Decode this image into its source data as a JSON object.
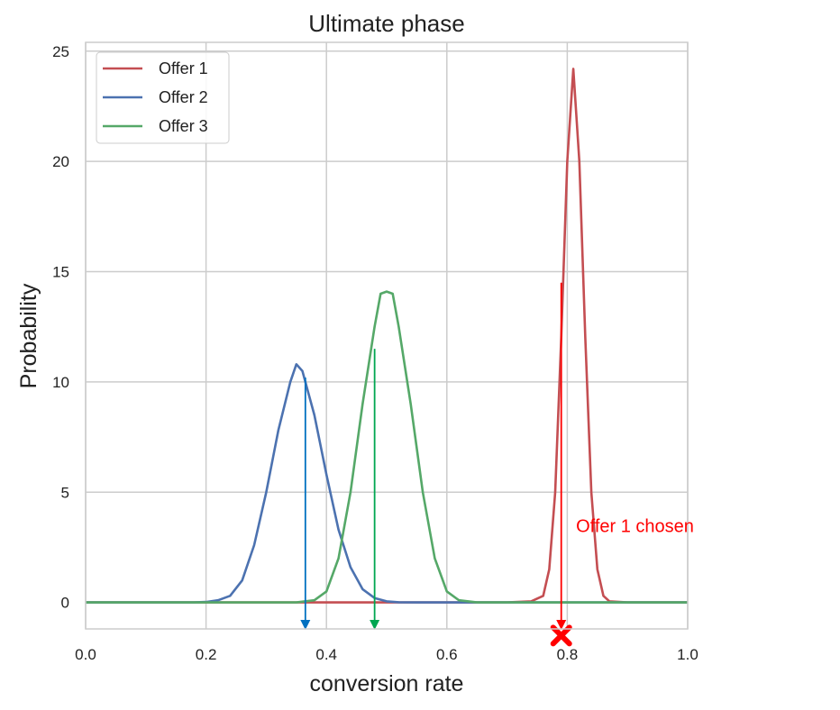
{
  "chart_data": {
    "type": "line",
    "title": "Ultimate phase",
    "xlabel": "conversion rate",
    "ylabel": "Probability",
    "xlim": [
      0.0,
      1.0
    ],
    "ylim": [
      -1.2,
      25.4
    ],
    "x_ticks": [
      "0.0",
      "0.2",
      "0.4",
      "0.6",
      "0.8",
      "1.0"
    ],
    "x_tick_values": [
      0.0,
      0.2,
      0.4,
      0.6,
      0.8,
      1.0
    ],
    "y_ticks": [
      "0",
      "5",
      "10",
      "15",
      "20",
      "25"
    ],
    "y_tick_values": [
      0,
      5,
      10,
      15,
      20,
      25
    ],
    "grid": true,
    "legend_position": "top-left",
    "series": [
      {
        "name": "Offer 1",
        "color": "#c44e52",
        "x": [
          0.0,
          0.7,
          0.74,
          0.76,
          0.77,
          0.78,
          0.79,
          0.8,
          0.81,
          0.82,
          0.83,
          0.84,
          0.85,
          0.86,
          0.87,
          0.9,
          1.0
        ],
        "y": [
          0,
          0,
          0.05,
          0.3,
          1.5,
          5,
          12,
          20,
          24.2,
          20,
          12,
          5,
          1.5,
          0.3,
          0.05,
          0,
          0
        ]
      },
      {
        "name": "Offer 2",
        "color": "#4c72b0",
        "x": [
          0.0,
          0.18,
          0.2,
          0.22,
          0.24,
          0.26,
          0.28,
          0.3,
          0.32,
          0.34,
          0.35,
          0.36,
          0.38,
          0.4,
          0.42,
          0.44,
          0.46,
          0.48,
          0.5,
          0.52,
          0.55,
          1.0
        ],
        "y": [
          0,
          0,
          0.02,
          0.1,
          0.3,
          1,
          2.6,
          5,
          7.8,
          10,
          10.8,
          10.5,
          8.5,
          5.8,
          3.3,
          1.6,
          0.6,
          0.2,
          0.05,
          0.01,
          0,
          0
        ]
      },
      {
        "name": "Offer 3",
        "color": "#55a868",
        "x": [
          0.0,
          0.35,
          0.38,
          0.4,
          0.42,
          0.44,
          0.46,
          0.48,
          0.49,
          0.5,
          0.51,
          0.52,
          0.54,
          0.56,
          0.58,
          0.6,
          0.62,
          0.65,
          1.0
        ],
        "y": [
          0,
          0,
          0.1,
          0.5,
          2,
          5,
          9,
          12.5,
          14,
          14.1,
          14,
          12.5,
          9,
          5,
          2,
          0.5,
          0.1,
          0,
          0
        ]
      }
    ],
    "arrows": [
      {
        "color": "#0070c0",
        "x": 0.365,
        "y_start": 10.2,
        "y_end": -1.2
      },
      {
        "color": "#00a651",
        "x": 0.48,
        "y_start": 11.5,
        "y_end": -1.2
      },
      {
        "color": "#ff0000",
        "x": 0.79,
        "y_start": 14.5,
        "y_end": -1.2
      }
    ],
    "marker": {
      "color": "#ff0000",
      "x": 0.79,
      "y": -1.5,
      "symbol": "x"
    },
    "annotation": {
      "text": "Offer 1 chosen",
      "color": "#ff0000",
      "x": 0.81,
      "y": 3.2
    }
  }
}
